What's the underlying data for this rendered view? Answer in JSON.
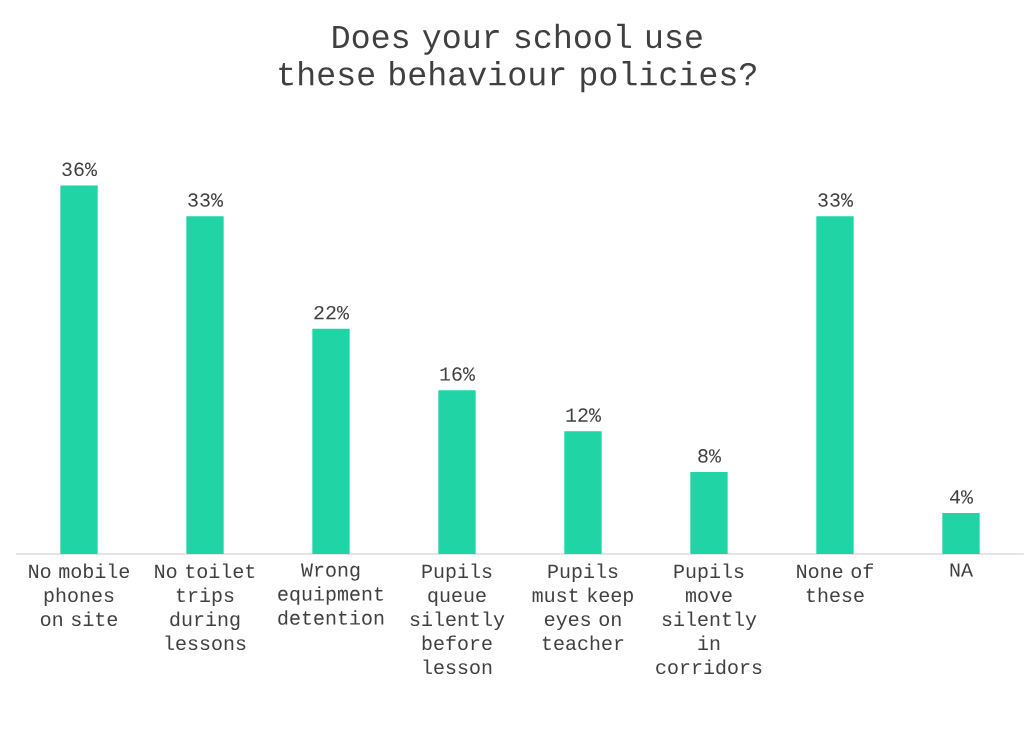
{
  "chart_data": {
    "type": "bar",
    "title": "Does your school use these behaviour policies?",
    "categories": [
      "No mobile phones on site",
      "No toilet trips during lessons",
      "Wrong equipment detention",
      "Pupils queue silently before lesson",
      "Pupils must keep eyes on teacher",
      "Pupils move silently in corridors",
      "None of these",
      "NA"
    ],
    "values": [
      36,
      33,
      22,
      16,
      12,
      8,
      33,
      4
    ],
    "value_labels": [
      "36%",
      "33%",
      "22%",
      "16%",
      "12%",
      "8%",
      "33%",
      "4%"
    ],
    "color": "#21d4a5"
  }
}
